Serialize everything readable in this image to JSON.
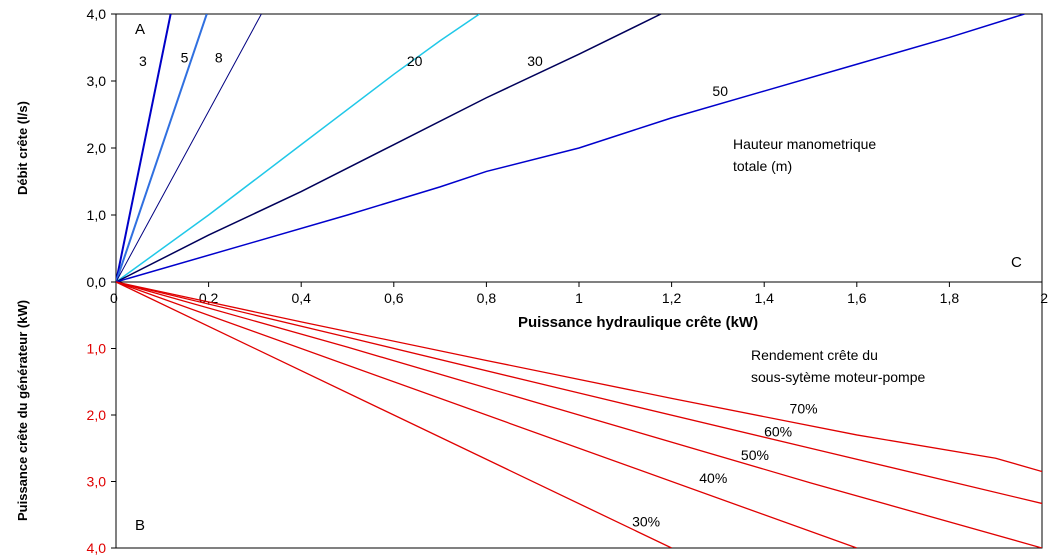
{
  "chart_data": [
    {
      "type": "line",
      "panel": "top",
      "ylabel": "Débit crête (l/s)",
      "xlabel": "Puissance hydraulique crête (kW)",
      "xlim": [
        0,
        2
      ],
      "ylim": [
        0,
        4
      ],
      "x_ticks": [
        "0",
        "0,2",
        "0,4",
        "0,6",
        "0,8",
        "1",
        "1,2",
        "1,4",
        "1,6",
        "1,8",
        "2"
      ],
      "y_ticks": [
        "0,0",
        "1,0",
        "2,0",
        "3,0",
        "4,0"
      ],
      "corner_labels": {
        "a": "A",
        "c": "C"
      },
      "annotation": {
        "line1": "Hauteur manometrique",
        "line2": "totale (m)"
      },
      "series": [
        {
          "name": "3",
          "color": "#0000c8",
          "width": 2,
          "x": [
            0,
            0.118
          ],
          "y": [
            0,
            4.0
          ]
        },
        {
          "name": "5",
          "color": "#3070e0",
          "width": 2,
          "x": [
            0,
            0.196
          ],
          "y": [
            0,
            4.0
          ]
        },
        {
          "name": "8",
          "color": "#000080",
          "width": 1,
          "x": [
            0,
            0.314
          ],
          "y": [
            0,
            4.0
          ]
        },
        {
          "name": "20",
          "color": "#20c8e8",
          "width": 1.5,
          "x": [
            0,
            0.2,
            0.4,
            0.6,
            0.7,
            0.785
          ],
          "y": [
            0,
            1.0,
            2.05,
            3.1,
            3.6,
            4.0
          ]
        },
        {
          "name": "30",
          "color": "#00005a",
          "width": 1.5,
          "x": [
            0,
            0.2,
            0.4,
            0.6,
            0.8,
            1.0,
            1.177
          ],
          "y": [
            0,
            0.7,
            1.35,
            2.05,
            2.75,
            3.4,
            4.0
          ]
        },
        {
          "name": "50",
          "color": "#0000cc",
          "width": 1.5,
          "x": [
            0,
            0.3,
            0.5,
            0.7,
            0.8,
            1.0,
            1.2,
            1.4,
            1.6,
            1.8,
            1.962
          ],
          "y": [
            0,
            0.6,
            1.0,
            1.42,
            1.65,
            2.0,
            2.45,
            2.85,
            3.25,
            3.65,
            4.0
          ]
        }
      ],
      "series_label_positions": [
        {
          "name": "3",
          "x": 0.058,
          "y": 3.3
        },
        {
          "name": "5",
          "x": 0.148,
          "y": 3.35
        },
        {
          "name": "8",
          "x": 0.222,
          "y": 3.35
        },
        {
          "name": "20",
          "x": 0.645,
          "y": 3.3
        },
        {
          "name": "30",
          "x": 0.905,
          "y": 3.3
        },
        {
          "name": "50",
          "x": 1.305,
          "y": 2.85
        }
      ]
    },
    {
      "type": "line",
      "panel": "bottom",
      "ylabel": "Puissance crête du générateur (kW)",
      "xlim": [
        0,
        2
      ],
      "ylim": [
        0,
        4
      ],
      "y_ticks": [
        "1,0",
        "2,0",
        "3,0",
        "4,0"
      ],
      "corner_labels": {
        "b": "B"
      },
      "annotation": {
        "line1": "Rendement crête du",
        "line2": "sous-sytème moteur-pompe"
      },
      "series": [
        {
          "name": "30%",
          "color": "#e00000",
          "x": [
            0,
            1.2
          ],
          "y": [
            0,
            4.0
          ]
        },
        {
          "name": "40%",
          "color": "#e00000",
          "x": [
            0,
            1.6
          ],
          "y": [
            0,
            4.0
          ]
        },
        {
          "name": "50%",
          "color": "#e00000",
          "x": [
            0,
            0.5,
            1.0,
            1.5,
            2.0
          ],
          "y": [
            0,
            0.98,
            2.0,
            3.02,
            4.0
          ]
        },
        {
          "name": "60%",
          "color": "#e00000",
          "x": [
            0,
            0.5,
            1.0,
            1.5,
            2.0
          ],
          "y": [
            0,
            0.83,
            1.67,
            2.5,
            3.33
          ]
        },
        {
          "name": "70%",
          "color": "#e00000",
          "x": [
            0,
            0.4,
            0.8,
            1.2,
            1.6,
            1.9,
            2.0
          ],
          "y": [
            0,
            0.6,
            1.18,
            1.75,
            2.3,
            2.65,
            2.85
          ]
        }
      ],
      "series_label_positions": [
        {
          "name": "30%",
          "x": 1.145,
          "y": 3.6
        },
        {
          "name": "40%",
          "x": 1.29,
          "y": 2.95
        },
        {
          "name": "50%",
          "x": 1.38,
          "y": 2.6
        },
        {
          "name": "60%",
          "x": 1.43,
          "y": 2.25
        },
        {
          "name": "70%",
          "x": 1.485,
          "y": 1.9
        }
      ]
    }
  ],
  "colors": {
    "axis": "#000000",
    "bottom_tick_labels": "#e00000"
  }
}
